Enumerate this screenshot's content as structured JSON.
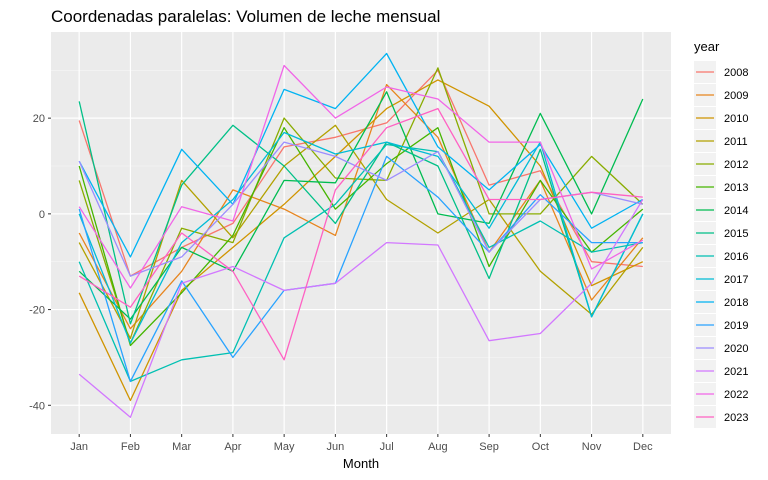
{
  "chart_data": {
    "type": "line",
    "title": "Coordenadas paralelas: Volumen de leche mensual",
    "xlabel": "Month",
    "ylabel": "",
    "legend_title": "year",
    "legend_position": "right",
    "grid": true,
    "ylim": [
      -46,
      38
    ],
    "y_ticks": [
      20,
      0,
      -20,
      -40
    ],
    "categories": [
      "Jan",
      "Feb",
      "Mar",
      "Apr",
      "May",
      "Jun",
      "Jul",
      "Aug",
      "Sep",
      "Oct",
      "Nov",
      "Dec"
    ],
    "series": [
      {
        "name": "2008",
        "color": "#F8766D",
        "values": [
          19.5,
          -13,
          -7,
          -2,
          14,
          16,
          19,
          30,
          6,
          9,
          -10,
          -11
        ]
      },
      {
        "name": "2009",
        "color": "#E7851E",
        "values": [
          -4,
          -24,
          -12,
          5,
          1,
          -4.5,
          27,
          16,
          -8,
          7,
          -18,
          -5
        ]
      },
      {
        "name": "2010",
        "color": "#D09400",
        "values": [
          -16.5,
          -39,
          -16,
          -7,
          2,
          12,
          22,
          28,
          22.5,
          10,
          -15,
          -10
        ]
      },
      {
        "name": "2011",
        "color": "#B2A100",
        "values": [
          -6,
          -26,
          7,
          -5,
          10,
          18.5,
          3,
          -4,
          3,
          -12,
          -21,
          -7
        ]
      },
      {
        "name": "2012",
        "color": "#89AC00",
        "values": [
          7,
          -27,
          -3,
          -6,
          20,
          7.5,
          7,
          30.5,
          0,
          0,
          12,
          2
        ]
      },
      {
        "name": "2013",
        "color": "#45B500",
        "values": [
          10,
          -27.5,
          -16.5,
          -4.5,
          18,
          1,
          10.5,
          18,
          -11,
          7,
          -8,
          1
        ]
      },
      {
        "name": "2014",
        "color": "#00BC51",
        "values": [
          -12,
          -22,
          -7,
          -12,
          7,
          6.5,
          25.5,
          0,
          -2,
          21,
          0,
          24
        ]
      },
      {
        "name": "2015",
        "color": "#00C087",
        "values": [
          23.5,
          -23,
          6,
          18.5,
          10,
          -2,
          15,
          10,
          -13.5,
          13.5,
          -21.5,
          0
        ]
      },
      {
        "name": "2016",
        "color": "#00C0B2",
        "values": [
          -10,
          -35,
          -30.5,
          -29,
          -5,
          2,
          14.5,
          13,
          -7,
          -1.5,
          -8,
          -6
        ]
      },
      {
        "name": "2017",
        "color": "#00BCD6",
        "values": [
          0,
          -27,
          -6,
          3,
          17,
          12.5,
          15,
          12,
          -3,
          15,
          -21.5,
          0
        ]
      },
      {
        "name": "2018",
        "color": "#00B3F2",
        "values": [
          11,
          -9,
          13.5,
          2,
          26,
          22,
          33.5,
          14,
          5,
          14.5,
          -3,
          3
        ]
      },
      {
        "name": "2019",
        "color": "#29A3FF",
        "values": [
          1,
          -35,
          -14,
          -30,
          -16,
          -14.5,
          12,
          3.5,
          -8,
          4,
          -6,
          -6
        ]
      },
      {
        "name": "2020",
        "color": "#9C8DFF",
        "values": [
          11,
          -13,
          -9,
          2,
          15,
          12,
          7,
          13,
          -8,
          3,
          4.5,
          2
        ]
      },
      {
        "name": "2021",
        "color": "#D277FF",
        "values": [
          -33.5,
          -42.5,
          -14.5,
          -11,
          -16,
          -14.5,
          -6,
          -6.5,
          -26.5,
          -25,
          -14.5,
          3
        ]
      },
      {
        "name": "2022",
        "color": "#F166E8",
        "values": [
          1.5,
          -15.5,
          1.5,
          -1.5,
          31,
          20,
          26.5,
          24,
          15,
          15,
          -11.5,
          -5.5
        ]
      },
      {
        "name": "2023",
        "color": "#FF61C3",
        "values": [
          -13,
          -19.5,
          -4,
          -12,
          -30.5,
          5,
          18,
          22,
          3,
          3,
          4.5,
          3.5
        ]
      }
    ]
  }
}
